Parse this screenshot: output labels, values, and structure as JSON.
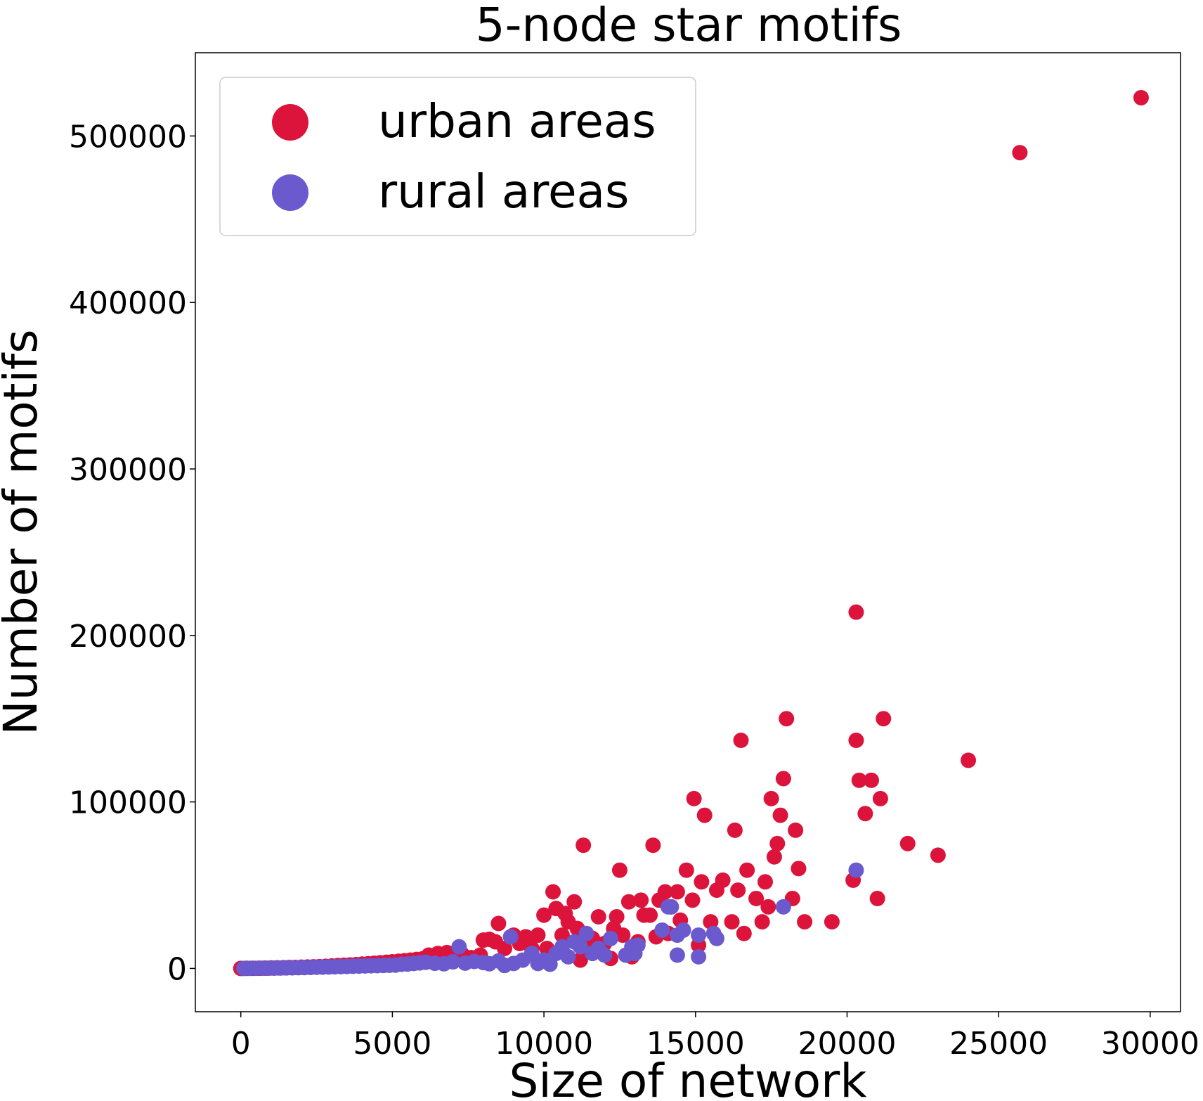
{
  "chart_data": {
    "type": "scatter",
    "title": "5-node star motifs",
    "xlabel": "Size of network",
    "ylabel": "Number of motifs",
    "xlim": [
      -1500,
      31000
    ],
    "ylim": [
      -26000,
      550000
    ],
    "xticks": [
      0,
      5000,
      10000,
      15000,
      20000,
      25000,
      30000
    ],
    "yticks": [
      0,
      100000,
      200000,
      300000,
      400000,
      500000
    ],
    "xtick_labels": [
      "0",
      "5000",
      "10000",
      "15000",
      "20000",
      "25000",
      "30000"
    ],
    "ytick_labels": [
      "0",
      "100000",
      "200000",
      "300000",
      "400000",
      "500000"
    ],
    "grid": false,
    "legend_position": "top-left",
    "series": [
      {
        "name": "urban areas",
        "color": "#dc143c",
        "points": [
          [
            0,
            0
          ],
          [
            200,
            50
          ],
          [
            400,
            100
          ],
          [
            600,
            150
          ],
          [
            800,
            200
          ],
          [
            1000,
            300
          ],
          [
            1200,
            350
          ],
          [
            1400,
            450
          ],
          [
            1600,
            550
          ],
          [
            1800,
            600
          ],
          [
            2000,
            750
          ],
          [
            2200,
            850
          ],
          [
            2400,
            1000
          ],
          [
            2600,
            1100
          ],
          [
            2800,
            1300
          ],
          [
            3000,
            1500
          ],
          [
            3200,
            1700
          ],
          [
            3400,
            1900
          ],
          [
            3600,
            2100
          ],
          [
            3800,
            2300
          ],
          [
            4000,
            2600
          ],
          [
            4200,
            2800
          ],
          [
            4400,
            3100
          ],
          [
            4600,
            3400
          ],
          [
            4800,
            3700
          ],
          [
            5000,
            4000
          ],
          [
            5200,
            4300
          ],
          [
            5400,
            4600
          ],
          [
            5600,
            5000
          ],
          [
            5800,
            5400
          ],
          [
            6000,
            5800
          ],
          [
            6200,
            8000
          ],
          [
            6500,
            9000
          ],
          [
            6800,
            9500
          ],
          [
            7000,
            4000
          ],
          [
            7300,
            8500
          ],
          [
            7600,
            6500
          ],
          [
            7900,
            8000
          ],
          [
            8000,
            17000
          ],
          [
            8200,
            17500
          ],
          [
            8400,
            16000
          ],
          [
            8500,
            27000
          ],
          [
            8700,
            12000
          ],
          [
            9000,
            20000
          ],
          [
            9200,
            15000
          ],
          [
            9400,
            19000
          ],
          [
            9600,
            12000
          ],
          [
            9800,
            20000
          ],
          [
            10000,
            32000
          ],
          [
            10100,
            12000
          ],
          [
            10300,
            46000
          ],
          [
            10400,
            36000
          ],
          [
            10600,
            20000
          ],
          [
            10700,
            33000
          ],
          [
            10800,
            28000
          ],
          [
            11000,
            40000
          ],
          [
            11100,
            24000
          ],
          [
            11200,
            5000
          ],
          [
            11300,
            74000
          ],
          [
            11500,
            12000
          ],
          [
            11600,
            18000
          ],
          [
            11800,
            31000
          ],
          [
            12000,
            15000
          ],
          [
            12200,
            6000
          ],
          [
            12300,
            24000
          ],
          [
            12400,
            31000
          ],
          [
            12500,
            59000
          ],
          [
            12600,
            20000
          ],
          [
            12800,
            40000
          ],
          [
            12900,
            7000
          ],
          [
            13100,
            16000
          ],
          [
            13200,
            41000
          ],
          [
            13300,
            32000
          ],
          [
            13500,
            32000
          ],
          [
            13600,
            74000
          ],
          [
            13700,
            19000
          ],
          [
            13800,
            41000
          ],
          [
            14000,
            46000
          ],
          [
            14100,
            21000
          ],
          [
            14200,
            37000
          ],
          [
            14400,
            46000
          ],
          [
            14500,
            29000
          ],
          [
            14700,
            59000
          ],
          [
            14900,
            41000
          ],
          [
            14950,
            102000
          ],
          [
            15100,
            14000
          ],
          [
            15200,
            52000
          ],
          [
            15300,
            92000
          ],
          [
            15500,
            28000
          ],
          [
            15700,
            47000
          ],
          [
            15900,
            53000
          ],
          [
            16200,
            28000
          ],
          [
            16300,
            83000
          ],
          [
            16400,
            47000
          ],
          [
            16500,
            137000
          ],
          [
            16600,
            21000
          ],
          [
            16700,
            59000
          ],
          [
            17000,
            42000
          ],
          [
            17200,
            28000
          ],
          [
            17300,
            52000
          ],
          [
            17400,
            37000
          ],
          [
            17500,
            102000
          ],
          [
            17600,
            67000
          ],
          [
            17700,
            75000
          ],
          [
            17800,
            92000
          ],
          [
            17900,
            114000
          ],
          [
            18000,
            150000
          ],
          [
            18200,
            42000
          ],
          [
            18300,
            83000
          ],
          [
            18400,
            60000
          ],
          [
            18600,
            28000
          ],
          [
            19500,
            28000
          ],
          [
            20200,
            53000
          ],
          [
            20300,
            137000
          ],
          [
            20300,
            214000
          ],
          [
            20400,
            113000
          ],
          [
            20600,
            93000
          ],
          [
            20800,
            113000
          ],
          [
            21000,
            42000
          ],
          [
            21100,
            102000
          ],
          [
            21200,
            150000
          ],
          [
            22000,
            75000
          ],
          [
            23000,
            68000
          ],
          [
            24000,
            125000
          ],
          [
            25700,
            490000
          ],
          [
            29700,
            523000
          ]
        ]
      },
      {
        "name": "rural areas",
        "color": "#6a5acd",
        "points": [
          [
            100,
            0
          ],
          [
            300,
            50
          ],
          [
            500,
            80
          ],
          [
            700,
            120
          ],
          [
            900,
            150
          ],
          [
            1100,
            200
          ],
          [
            1300,
            260
          ],
          [
            1500,
            320
          ],
          [
            1700,
            380
          ],
          [
            1900,
            450
          ],
          [
            2100,
            520
          ],
          [
            2300,
            600
          ],
          [
            2500,
            700
          ],
          [
            2700,
            800
          ],
          [
            2900,
            900
          ],
          [
            3100,
            1000
          ],
          [
            3300,
            1100
          ],
          [
            3500,
            1200
          ],
          [
            3700,
            1300
          ],
          [
            3900,
            1400
          ],
          [
            4100,
            1500
          ],
          [
            4300,
            1600
          ],
          [
            4500,
            1700
          ],
          [
            4700,
            1800
          ],
          [
            4900,
            1900
          ],
          [
            5100,
            2000
          ],
          [
            5300,
            2500
          ],
          [
            5500,
            2600
          ],
          [
            5700,
            3000
          ],
          [
            5900,
            3300
          ],
          [
            6100,
            3700
          ],
          [
            6400,
            3100
          ],
          [
            6700,
            2800
          ],
          [
            7000,
            4000
          ],
          [
            7200,
            13000
          ],
          [
            7400,
            3200
          ],
          [
            7700,
            4200
          ],
          [
            8000,
            3500
          ],
          [
            8200,
            2800
          ],
          [
            8500,
            4500
          ],
          [
            8700,
            1800
          ],
          [
            8900,
            19000
          ],
          [
            9000,
            3000
          ],
          [
            9300,
            5000
          ],
          [
            9600,
            9000
          ],
          [
            9800,
            3000
          ],
          [
            10000,
            5000
          ],
          [
            10200,
            2500
          ],
          [
            10400,
            9000
          ],
          [
            10600,
            13000
          ],
          [
            10800,
            7000
          ],
          [
            11000,
            16000
          ],
          [
            11200,
            13000
          ],
          [
            11400,
            21000
          ],
          [
            11600,
            9000
          ],
          [
            11800,
            12000
          ],
          [
            12000,
            8000
          ],
          [
            12200,
            18000
          ],
          [
            12700,
            8000
          ],
          [
            12900,
            13000
          ],
          [
            13000,
            9000
          ],
          [
            13100,
            14000
          ],
          [
            13900,
            23000
          ],
          [
            14100,
            37000
          ],
          [
            14200,
            37000
          ],
          [
            14400,
            8000
          ],
          [
            14400,
            20000
          ],
          [
            14600,
            23000
          ],
          [
            15100,
            7000
          ],
          [
            15100,
            20000
          ],
          [
            15600,
            21000
          ],
          [
            15700,
            18000
          ],
          [
            17900,
            37000
          ],
          [
            20300,
            59000
          ]
        ]
      }
    ]
  }
}
